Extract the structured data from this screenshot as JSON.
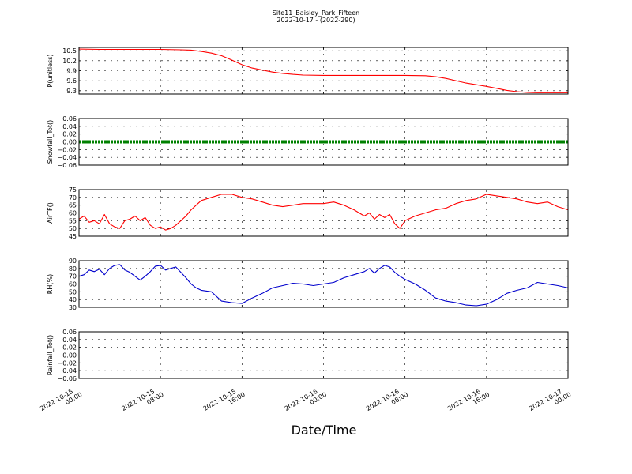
{
  "figure": {
    "title": "Site11_Baisley_Park_Fifteen",
    "subtitle": "2022-10-17 - (2022-290)",
    "xlabel": "Date/Time"
  },
  "chart_data": [
    {
      "type": "line",
      "ylabel": "P(unitless)",
      "ylim": [
        9.2,
        10.6
      ],
      "yticks": [
        "10.5",
        "10.2",
        "9.9",
        "9.6",
        "9.3"
      ],
      "ytick_values": [
        10.5,
        10.2,
        9.9,
        9.6,
        9.3
      ],
      "grid": true,
      "color": "#ff0000",
      "x_hours": [
        0,
        2,
        4,
        6,
        8,
        10,
        11,
        12,
        13,
        14,
        15,
        16,
        17,
        18,
        19,
        20,
        21,
        22,
        24,
        26,
        28,
        30,
        32,
        34,
        35,
        36,
        37,
        38,
        39,
        40,
        41,
        42,
        43,
        44,
        45,
        46,
        48
      ],
      "values": [
        10.55,
        10.54,
        10.54,
        10.54,
        10.54,
        10.53,
        10.52,
        10.48,
        10.43,
        10.35,
        10.22,
        10.08,
        9.98,
        9.92,
        9.86,
        9.82,
        9.79,
        9.77,
        9.76,
        9.76,
        9.76,
        9.76,
        9.76,
        9.75,
        9.72,
        9.67,
        9.6,
        9.53,
        9.48,
        9.43,
        9.37,
        9.31,
        9.27,
        9.25,
        9.24,
        9.24,
        9.24
      ]
    },
    {
      "type": "line",
      "ylabel": "Snowfall_Tot()",
      "ylim": [
        -0.06,
        0.06
      ],
      "yticks": [
        "0.06",
        "0.04",
        "0.02",
        "0.00",
        "−0.02",
        "−0.04",
        "−0.06"
      ],
      "ytick_values": [
        0.06,
        0.04,
        0.02,
        0.0,
        -0.02,
        -0.04,
        -0.06
      ],
      "grid": true,
      "color": "#008000",
      "marker": "dots",
      "x_hours": [
        0,
        48
      ],
      "values": [
        0,
        0
      ]
    },
    {
      "type": "line",
      "ylabel": "AirTF()",
      "ylim": [
        45,
        75
      ],
      "yticks": [
        "75",
        "70",
        "65",
        "60",
        "55",
        "50",
        "45"
      ],
      "ytick_values": [
        75,
        70,
        65,
        60,
        55,
        50,
        45
      ],
      "grid": true,
      "color": "#ff0000",
      "x_hours": [
        0,
        0.5,
        1,
        1.5,
        2,
        2.5,
        3,
        3.5,
        4,
        4.5,
        5,
        5.5,
        6,
        6.5,
        7,
        7.5,
        8,
        8.5,
        9,
        9.5,
        10,
        10.5,
        11,
        11.5,
        12,
        13,
        14,
        15,
        16,
        17,
        18,
        19,
        20,
        21,
        22,
        23,
        24,
        25,
        26,
        27,
        28,
        28.5,
        29,
        29.5,
        30,
        30.5,
        31,
        31.5,
        32,
        33,
        34,
        35,
        36,
        37,
        38,
        39,
        40,
        41,
        42,
        43,
        44,
        45,
        46,
        47,
        48
      ],
      "values": [
        56,
        58,
        54,
        55,
        53,
        59,
        53,
        51,
        50,
        55,
        56,
        58,
        55,
        57,
        52,
        50,
        51,
        49,
        50,
        52,
        55,
        58,
        62,
        65,
        68,
        70,
        72,
        72,
        70,
        69,
        67,
        65,
        64,
        65,
        66,
        66,
        66,
        67,
        65,
        62,
        58,
        60,
        56,
        59,
        57,
        59,
        53,
        50,
        55,
        58,
        60,
        62,
        63,
        66,
        68,
        69,
        72,
        71,
        70,
        69,
        67,
        66,
        67,
        64,
        62
      ]
    },
    {
      "type": "line",
      "ylabel": "RH(%)",
      "ylim": [
        30,
        90
      ],
      "yticks": [
        "90",
        "80",
        "70",
        "60",
        "50",
        "40",
        "30"
      ],
      "ytick_values": [
        90,
        80,
        70,
        60,
        50,
        40,
        30
      ],
      "grid": true,
      "color": "#0000cc",
      "x_hours": [
        0,
        0.5,
        1,
        1.5,
        2,
        2.5,
        3,
        3.5,
        4,
        4.5,
        5,
        5.5,
        6,
        6.5,
        7,
        7.5,
        8,
        8.5,
        9,
        9.5,
        10,
        10.5,
        11,
        11.5,
        12,
        13,
        14,
        15,
        16,
        17,
        18,
        19,
        20,
        21,
        22,
        23,
        24,
        25,
        26,
        27,
        28,
        28.5,
        29,
        29.5,
        30,
        30.5,
        31,
        31.5,
        32,
        33,
        34,
        35,
        36,
        37,
        38,
        39,
        40,
        41,
        42,
        43,
        44,
        45,
        46,
        47,
        48
      ],
      "values": [
        70,
        72,
        78,
        76,
        79,
        72,
        80,
        84,
        85,
        78,
        75,
        70,
        65,
        70,
        76,
        83,
        84,
        78,
        80,
        82,
        75,
        68,
        60,
        55,
        52,
        50,
        38,
        36,
        35,
        42,
        48,
        55,
        58,
        61,
        60,
        58,
        60,
        62,
        68,
        72,
        76,
        80,
        74,
        80,
        84,
        82,
        75,
        70,
        66,
        60,
        52,
        42,
        38,
        36,
        33,
        32,
        34,
        40,
        48,
        52,
        55,
        62,
        60,
        58,
        55
      ]
    },
    {
      "type": "line",
      "ylabel": "Rainfall_Tot()",
      "ylim": [
        -0.06,
        0.06
      ],
      "yticks": [
        "0.06",
        "0.04",
        "0.02",
        "0.00",
        "−0.02",
        "−0.04",
        "−0.06"
      ],
      "ytick_values": [
        0.06,
        0.04,
        0.02,
        0.0,
        -0.02,
        -0.04,
        -0.06
      ],
      "grid": true,
      "color": "#ff0000",
      "x_hours": [
        0,
        48
      ],
      "values": [
        0,
        0
      ]
    }
  ],
  "x_axis": {
    "ticks": [
      {
        "line1": "2022-10-15",
        "line2": "00:00"
      },
      {
        "line1": "2022-10-15",
        "line2": "08:00"
      },
      {
        "line1": "2022-10-15",
        "line2": "16:00"
      },
      {
        "line1": "2022-10-16",
        "line2": "00:00"
      },
      {
        "line1": "2022-10-16",
        "line2": "08:00"
      },
      {
        "line1": "2022-10-16",
        "line2": "16:00"
      },
      {
        "line1": "2022-10-17",
        "line2": "00:00"
      }
    ],
    "tick_hours": [
      0,
      8,
      16,
      24,
      32,
      40,
      48
    ],
    "range_hours": [
      0,
      48
    ]
  }
}
